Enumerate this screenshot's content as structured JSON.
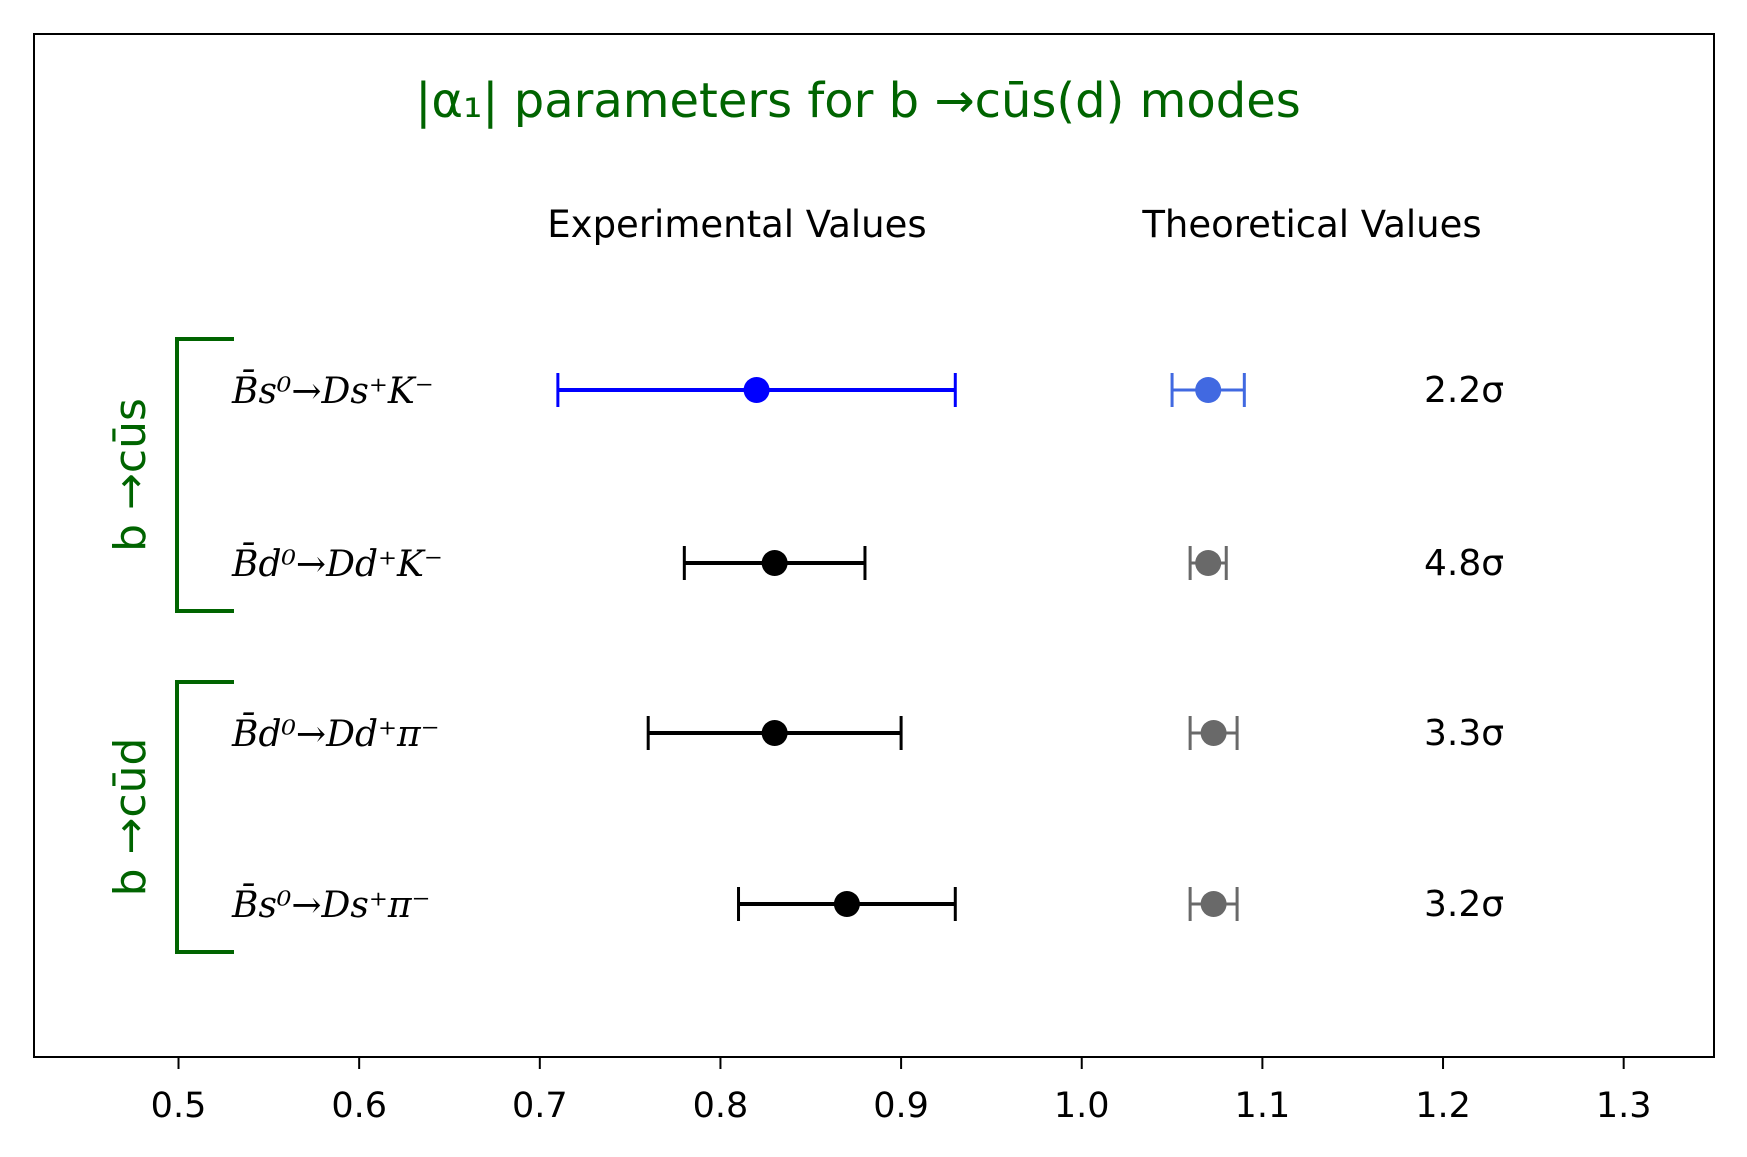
{
  "chart_data": {
    "type": "scatter",
    "title": "|α₁| parameters for b →cūs(d) modes",
    "header_experimental": "Experimental Values",
    "header_theoretical": "Theoretical Values",
    "xlim": [
      0.42,
      1.35
    ],
    "xticks": [
      0.5,
      0.6,
      0.7,
      0.8,
      0.9,
      1.0,
      1.1,
      1.2,
      1.3
    ],
    "tick_labels": [
      "0.5",
      "0.6",
      "0.7",
      "0.8",
      "0.9",
      "1.0",
      "1.1",
      "1.2",
      "1.3"
    ],
    "grid": false,
    "groups": [
      {
        "label": "b →cūs",
        "color": "#006400",
        "rows": [
          0,
          1
        ]
      },
      {
        "label": "b →cūd",
        "color": "#006400",
        "rows": [
          2,
          3
        ]
      }
    ],
    "rows": [
      {
        "label": "B̄s⁰→Ds⁺K⁻",
        "exp": {
          "value": 0.82,
          "low": 0.71,
          "high": 0.93,
          "color": "#0000ff"
        },
        "theo": {
          "value": 1.07,
          "low": 1.05,
          "high": 1.09,
          "color": "#4169e1"
        },
        "tension": "2.2σ"
      },
      {
        "label": "B̄d⁰→Dd⁺K⁻",
        "exp": {
          "value": 0.83,
          "low": 0.78,
          "high": 0.88,
          "color": "#000000"
        },
        "theo": {
          "value": 1.07,
          "low": 1.06,
          "high": 1.08,
          "color": "#696969"
        },
        "tension": "4.8σ"
      },
      {
        "label": "B̄d⁰→Dd⁺π⁻",
        "exp": {
          "value": 0.83,
          "low": 0.76,
          "high": 0.9,
          "color": "#000000"
        },
        "theo": {
          "value": 1.073,
          "low": 1.06,
          "high": 1.086,
          "color": "#696969"
        },
        "tension": "3.3σ"
      },
      {
        "label": "B̄s⁰→Ds⁺π⁻",
        "exp": {
          "value": 0.87,
          "low": 0.81,
          "high": 0.93,
          "color": "#000000"
        },
        "theo": {
          "value": 1.073,
          "low": 1.06,
          "high": 1.086,
          "color": "#696969"
        },
        "tension": "3.2σ"
      }
    ]
  }
}
